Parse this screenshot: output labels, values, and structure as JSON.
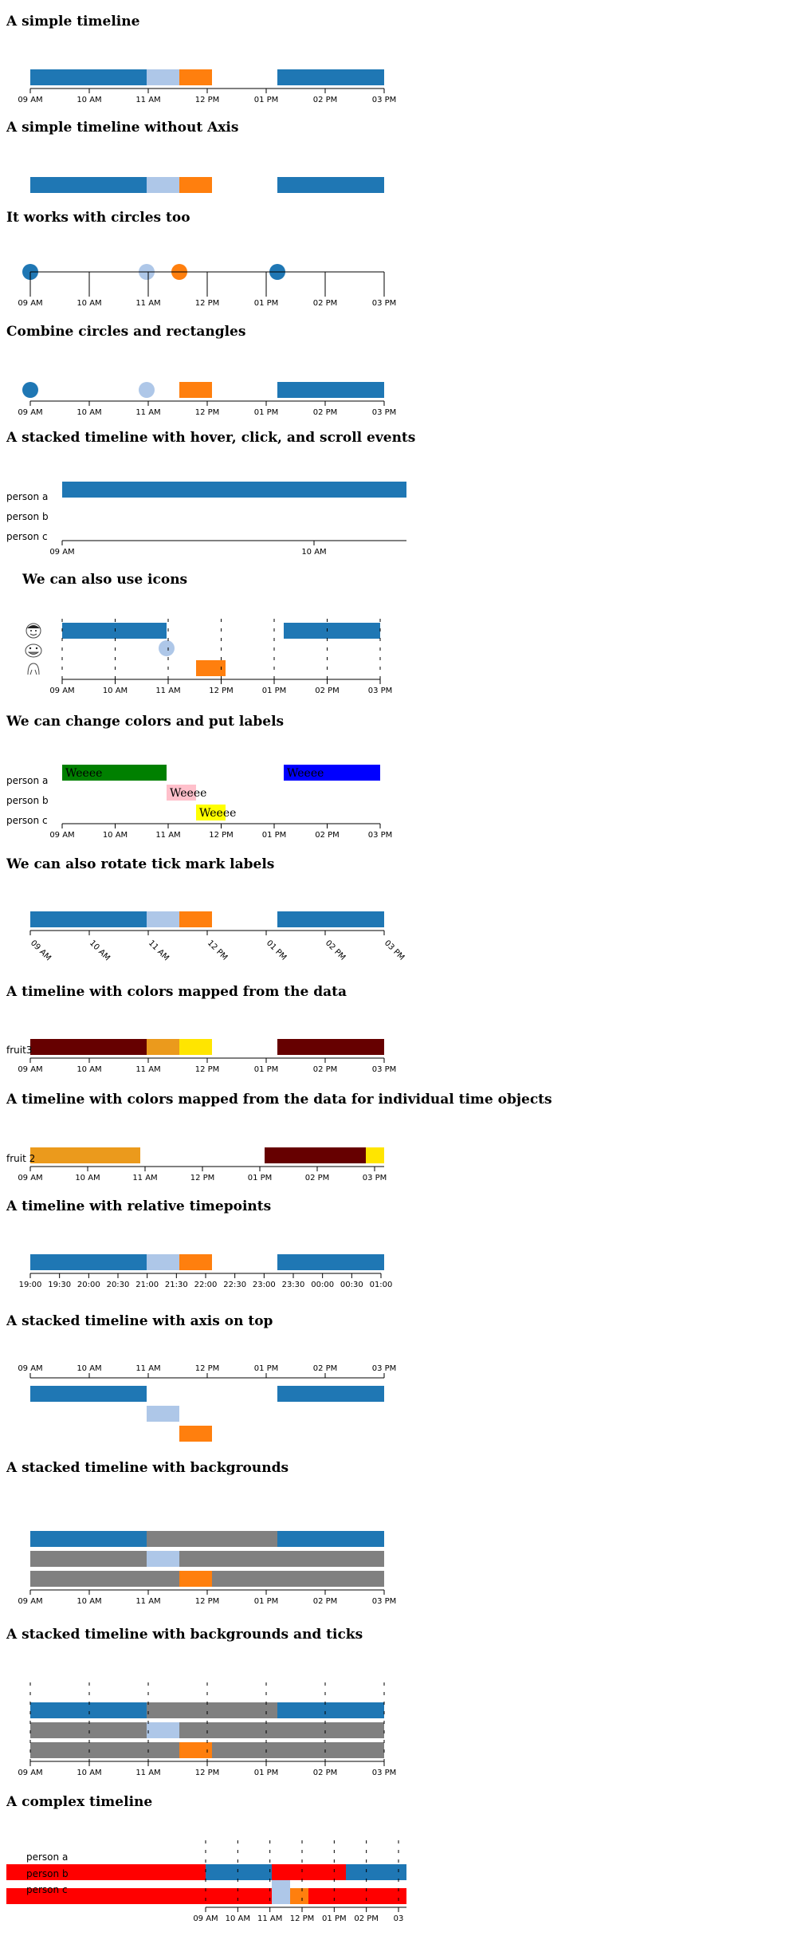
{
  "times": [
    "09 AM",
    "10 AM",
    "11 AM",
    "12 PM",
    "01 PM",
    "02 PM",
    "03 PM"
  ],
  "relative_times": [
    "19:00",
    "19:30",
    "20:00",
    "20:30",
    "21:00",
    "21:30",
    "22:00",
    "22:30",
    "23:00",
    "23:30",
    "00:00",
    "00:30",
    "01:00"
  ],
  "colors": {
    "blue": "#1f77b4",
    "light_blue": "#aec7e8",
    "orange": "#ff7f0e",
    "gray": "#808080",
    "green": "#008000",
    "pink": "#ffc0cb",
    "yellow": "#ffff00",
    "pure_blue": "#0000ff",
    "maroon": "#660000",
    "amber": "#eb9a1c",
    "bright_yellow": "#ffe500",
    "red": "#ff0000"
  },
  "sections": [
    {
      "title": "A simple timeline"
    },
    {
      "title": "A simple timeline without Axis"
    },
    {
      "title": "It works with circles too"
    },
    {
      "title": "Combine circles and rectangles"
    },
    {
      "title": "A stacked timeline with hover, click, and scroll events",
      "rows": [
        "person a",
        "person b",
        "person c"
      ],
      "ticks": [
        "09 AM",
        "10 AM"
      ]
    },
    {
      "title": "We can also use icons",
      "icons": [
        "face-icon-1",
        "face-icon-2",
        "face-icon-3"
      ]
    },
    {
      "title": "We can change colors and put labels",
      "rows": [
        "person a",
        "person b",
        "person c"
      ],
      "bar_labels": [
        "Weeee",
        "Weeee",
        "Weeee",
        "Weeee"
      ]
    },
    {
      "title": "We can also rotate tick mark labels"
    },
    {
      "title": "A timeline with colors mapped from the data",
      "row_label": "fruit3"
    },
    {
      "title": "A timeline with colors mapped from the data for individual time objects",
      "row_label": "fruit 2"
    },
    {
      "title": "A timeline with relative timepoints"
    },
    {
      "title": "A stacked timeline with axis on top"
    },
    {
      "title": "A stacked timeline with backgrounds"
    },
    {
      "title": "A stacked timeline with backgrounds and ticks"
    },
    {
      "title": "A complex timeline",
      "rows": [
        "person a",
        "person b",
        "person c"
      ],
      "ticks": [
        "09 AM",
        "10 AM",
        "11 AM",
        "12 PM",
        "01 PM",
        "02 PM",
        "03"
      ]
    }
  ]
}
